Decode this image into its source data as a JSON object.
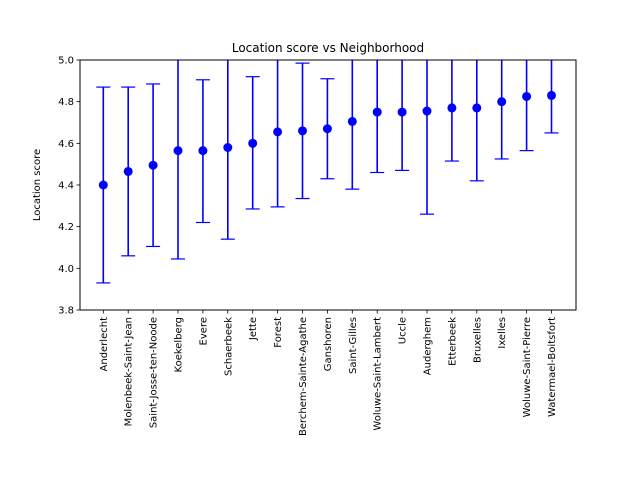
{
  "chart_data": {
    "type": "scatter",
    "title": "Location score vs Neighborhood",
    "xlabel": "",
    "ylabel": "Location score",
    "ylim": [
      3.8,
      5.0
    ],
    "yticks": [
      "3.8",
      "4.0",
      "4.2",
      "4.4",
      "4.6",
      "4.8",
      "5.0"
    ],
    "grid": false,
    "series_color": "#0000ff",
    "categories": [
      "Anderlecht",
      "Molenbeek-Saint-Jean",
      "Saint-Josse-ten-Noode",
      "Koekelberg",
      "Evere",
      "Schaerbeek",
      "Jette",
      "Forest",
      "Berchem-Sainte-Agathe",
      "Ganshoren",
      "Saint-Gilles",
      "Woluwe-Saint-Lambert",
      "Uccle",
      "Auderghem",
      "Etterbeek",
      "Bruxelles",
      "Ixelles",
      "Woluwe-Saint-Pierre",
      "Watermael-Boitsfort"
    ],
    "values": [
      4.4,
      4.465,
      4.495,
      4.565,
      4.565,
      4.58,
      4.6,
      4.655,
      4.66,
      4.67,
      4.705,
      4.75,
      4.75,
      4.755,
      4.77,
      4.77,
      4.8,
      4.825,
      4.83
    ],
    "err_low": [
      3.93,
      4.06,
      4.105,
      4.045,
      4.22,
      4.14,
      4.285,
      4.295,
      4.335,
      4.43,
      4.38,
      4.46,
      4.47,
      4.26,
      4.515,
      4.42,
      4.525,
      4.565,
      4.65
    ],
    "err_high": [
      4.87,
      4.87,
      4.885,
      5.1,
      4.905,
      5.05,
      4.92,
      5.05,
      4.985,
      4.91,
      5.05,
      5.05,
      5.05,
      5.25,
      5.05,
      5.12,
      5.1,
      5.1,
      5.01
    ]
  }
}
